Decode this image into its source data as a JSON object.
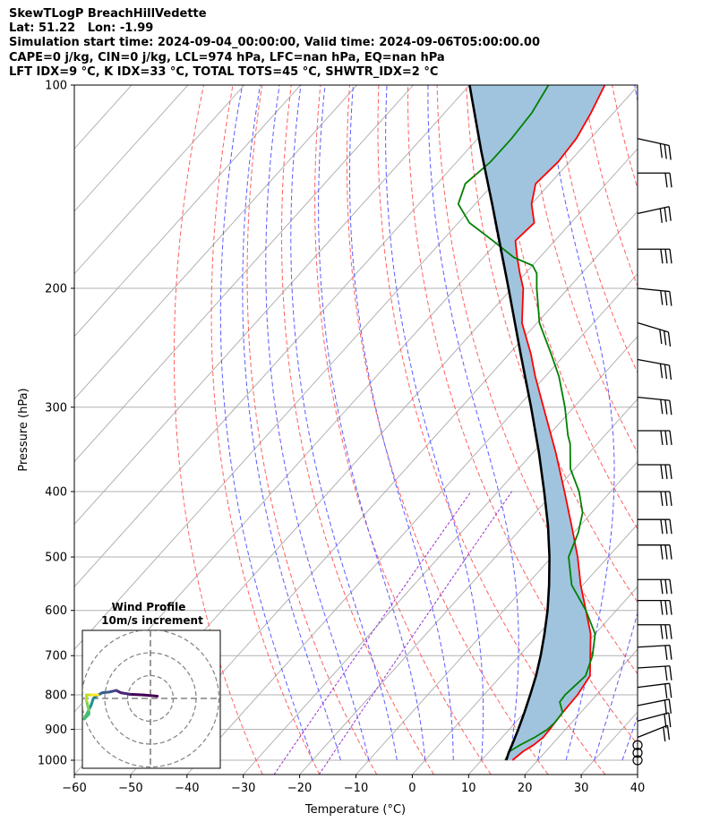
{
  "header": {
    "line1": "SkewTLogP BreachHillVedette",
    "line2": "Lat: 51.22   Lon: -1.99",
    "line3": "Simulation start time: 2024-09-04_00:00:00, Valid time: 2024-09-06T05:00:00.00",
    "line4": "CAPE=0 j/kg, CIN=0 j/kg, LCL=974 hPa, LFC=nan hPa, EQ=nan hPa",
    "line5": "LFT IDX=9 °C, K IDX=33 °C, TOTAL TOTS=45 °C, SHWTR_IDX=2 °C"
  },
  "chart_data": {
    "type": "line",
    "skew_t": true,
    "xlabel": "Temperature (°C)",
    "ylabel": "Pressure (hPa)",
    "xlim": [
      -60,
      40
    ],
    "ylim": [
      1050,
      100
    ],
    "x_ticks": [
      "−60",
      "−50",
      "−40",
      "−30",
      "−20",
      "−10",
      "0",
      "10",
      "20",
      "30",
      "40"
    ],
    "y_ticks": [
      "1000",
      "900",
      "800",
      "700",
      "600",
      "500",
      "400",
      "300",
      "200",
      "100"
    ],
    "y_tick_values": [
      1000,
      900,
      800,
      700,
      600,
      500,
      400,
      300,
      200,
      100
    ],
    "grid": true,
    "colors": {
      "temperature": "#ff0000",
      "dewpoint": "#008000",
      "parcel": "#000000",
      "cape_fill": "#a0c4de",
      "dry_adiabat": "#ff6060",
      "moist_adiabat": "#5b5bff",
      "mixing_ratio": "#9b30d0",
      "isotherm": "#aaaaaa"
    },
    "series": [
      {
        "key": "temperature",
        "points": [
          [
            1000,
            15.5
          ],
          [
            970,
            16.0
          ],
          [
            950,
            16.8
          ],
          [
            925,
            17.3
          ],
          [
            900,
            17.2
          ],
          [
            850,
            16.8
          ],
          [
            800,
            16.6
          ],
          [
            750,
            15.8
          ],
          [
            700,
            12.6
          ],
          [
            650,
            9.2
          ],
          [
            600,
            4.6
          ],
          [
            550,
            -0.4
          ],
          [
            500,
            -5.4
          ],
          [
            450,
            -11.4
          ],
          [
            400,
            -18.2
          ],
          [
            350,
            -26.0
          ],
          [
            300,
            -35.4
          ],
          [
            270,
            -41.8
          ],
          [
            250,
            -46.2
          ],
          [
            225,
            -52.7
          ],
          [
            200,
            -58.0
          ],
          [
            190,
            -61.0
          ],
          [
            180,
            -64.0
          ],
          [
            170,
            -67.0
          ],
          [
            160,
            -66.5
          ],
          [
            150,
            -70.0
          ],
          [
            140,
            -72.5
          ],
          [
            130,
            -72.0
          ],
          [
            120,
            -72.5
          ],
          [
            110,
            -74.0
          ],
          [
            100,
            -76.0
          ]
        ]
      },
      {
        "key": "dewpoint",
        "points": [
          [
            1000,
            14.2
          ],
          [
            970,
            13.6
          ],
          [
            950,
            14.4
          ],
          [
            925,
            15.8
          ],
          [
            900,
            16.8
          ],
          [
            880,
            17.0
          ],
          [
            850,
            16.8
          ],
          [
            820,
            14.6
          ],
          [
            800,
            14.4
          ],
          [
            750,
            15.0
          ],
          [
            700,
            13.0
          ],
          [
            650,
            10.0
          ],
          [
            600,
            4.6
          ],
          [
            550,
            -2.0
          ],
          [
            500,
            -7.0
          ],
          [
            460,
            -9.2
          ],
          [
            430,
            -11.6
          ],
          [
            400,
            -15.6
          ],
          [
            370,
            -20.8
          ],
          [
            340,
            -24.8
          ],
          [
            330,
            -26.6
          ],
          [
            300,
            -31.6
          ],
          [
            270,
            -37.6
          ],
          [
            250,
            -42.6
          ],
          [
            225,
            -49.6
          ],
          [
            200,
            -55.6
          ],
          [
            190,
            -58.0
          ],
          [
            185,
            -60.0
          ],
          [
            180,
            -64.6
          ],
          [
            170,
            -71.0
          ],
          [
            160,
            -78.0
          ],
          [
            150,
            -83.0
          ],
          [
            140,
            -85.0
          ],
          [
            130,
            -84.0
          ],
          [
            120,
            -84.0
          ],
          [
            110,
            -84.5
          ],
          [
            100,
            -86.0
          ]
        ]
      },
      {
        "key": "parcel",
        "points": [
          [
            1000,
            14.4
          ],
          [
            974,
            13.6
          ],
          [
            950,
            13.0
          ],
          [
            900,
            11.6
          ],
          [
            850,
            10.0
          ],
          [
            800,
            8.2
          ],
          [
            750,
            6.2
          ],
          [
            700,
            3.8
          ],
          [
            650,
            1.0
          ],
          [
            600,
            -2.2
          ],
          [
            550,
            -6.0
          ],
          [
            500,
            -10.4
          ],
          [
            450,
            -15.6
          ],
          [
            400,
            -21.8
          ],
          [
            350,
            -29.0
          ],
          [
            300,
            -37.6
          ],
          [
            250,
            -48.0
          ],
          [
            200,
            -60.6
          ],
          [
            150,
            -77.0
          ],
          [
            125,
            -87.5
          ],
          [
            100,
            -100.0
          ]
        ]
      }
    ],
    "winds": [
      {
        "p": 1000,
        "barb": "calm"
      },
      {
        "p": 975,
        "barb": "calm"
      },
      {
        "p": 950,
        "barb": "calm"
      },
      {
        "p": 925,
        "barb": "flag",
        "u": 15,
        "v": 6
      },
      {
        "p": 875,
        "barb": "flag",
        "u": 15,
        "v": 4
      },
      {
        "p": 830,
        "barb": "flag",
        "u": 15,
        "v": 3
      },
      {
        "p": 780,
        "barb": "flag",
        "u": 16,
        "v": 2
      },
      {
        "p": 730,
        "barb": "flag",
        "u": 16,
        "v": 1
      },
      {
        "p": 680,
        "barb": "flag",
        "u": 17,
        "v": 1
      },
      {
        "p": 630,
        "barb": "flag",
        "u": 18,
        "v": 0
      },
      {
        "p": 580,
        "barb": "flag",
        "u": 18,
        "v": 0
      },
      {
        "p": 540,
        "barb": "flag",
        "u": 18,
        "v": 0
      },
      {
        "p": 480,
        "barb": "flag",
        "u": 18,
        "v": 0
      },
      {
        "p": 440,
        "barb": "flag",
        "u": 18,
        "v": 0
      },
      {
        "p": 400,
        "barb": "flag",
        "u": 18,
        "v": 0
      },
      {
        "p": 365,
        "barb": "flag",
        "u": 18,
        "v": 0
      },
      {
        "p": 325,
        "barb": "flag",
        "u": 18,
        "v": 0
      },
      {
        "p": 290,
        "barb": "flag",
        "u": 20,
        "v": -2
      },
      {
        "p": 255,
        "barb": "flag",
        "u": 22,
        "v": -4
      },
      {
        "p": 225,
        "barb": "flag",
        "u": 20,
        "v": -6
      },
      {
        "p": 200,
        "barb": "flag",
        "u": 20,
        "v": -2
      },
      {
        "p": 175,
        "barb": "flag",
        "u": 20,
        "v": 0
      },
      {
        "p": 155,
        "barb": "flag",
        "u": 18,
        "v": 4
      },
      {
        "p": 135,
        "barb": "flag",
        "u": 16,
        "v": 0
      },
      {
        "p": 120,
        "barb": "flag",
        "u": 18,
        "v": -4
      }
    ],
    "hodograph": {
      "title": "Wind Profile",
      "subtitle": "10m/s increment",
      "rings": [
        10,
        20,
        30
      ],
      "points": [
        [
          3,
          1
        ],
        [
          -3,
          1.5
        ],
        [
          -9,
          1.8
        ],
        [
          -13,
          2.5
        ],
        [
          -15,
          3.5
        ],
        [
          -18,
          2.8
        ],
        [
          -21,
          2.5
        ],
        [
          -23,
          1.5
        ],
        [
          -25,
          0
        ],
        [
          -26,
          -3
        ],
        [
          -27,
          -5
        ],
        [
          -27,
          -7
        ],
        [
          -29,
          -9
        ],
        [
          -27,
          -5
        ],
        [
          -28,
          -1
        ],
        [
          -28,
          1.5
        ],
        [
          -26,
          1.5
        ],
        [
          -23,
          1.5
        ]
      ]
    }
  }
}
